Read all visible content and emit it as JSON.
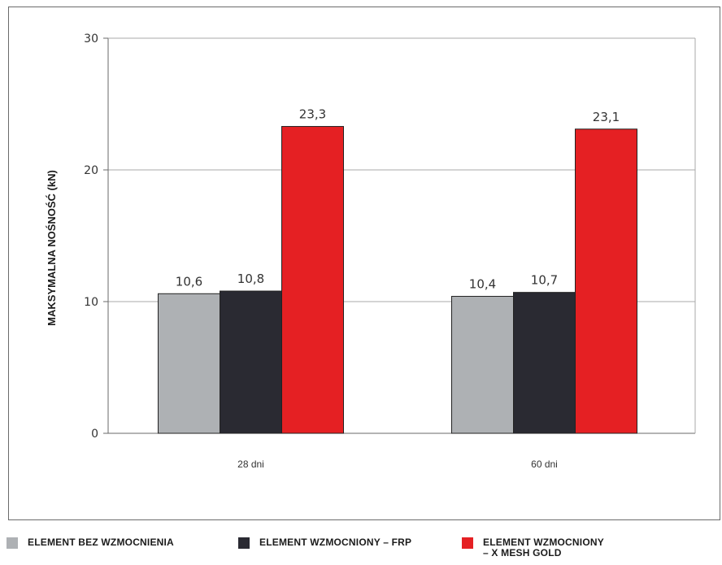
{
  "chart_data": {
    "type": "bar",
    "categories": [
      "28 dni",
      "60 dni"
    ],
    "series": [
      {
        "name": "ELEMENT BEZ WZMOCNIENIA",
        "color": "#aeb1b4",
        "values": [
          10.6,
          10.4
        ],
        "labels": [
          "10,6",
          "10,4"
        ]
      },
      {
        "name": "ELEMENT WZMOCNIONY – FRP",
        "color": "#2a2a32",
        "values": [
          10.8,
          10.7
        ],
        "labels": [
          "10,8",
          "10,7"
        ]
      },
      {
        "name": "ELEMENT WZMOCNIONY\n– X MESH GOLD",
        "color": "#e52023",
        "values": [
          23.3,
          23.1
        ],
        "labels": [
          "23,3",
          "23,1"
        ]
      }
    ],
    "ylabel": "MAKSYMALNA NOŚNOŚĆ (kN)",
    "xlabel": "",
    "ylim": [
      0,
      30
    ],
    "yticks": [
      0,
      10,
      20,
      30
    ],
    "grid": true,
    "legend_position": "bottom"
  }
}
